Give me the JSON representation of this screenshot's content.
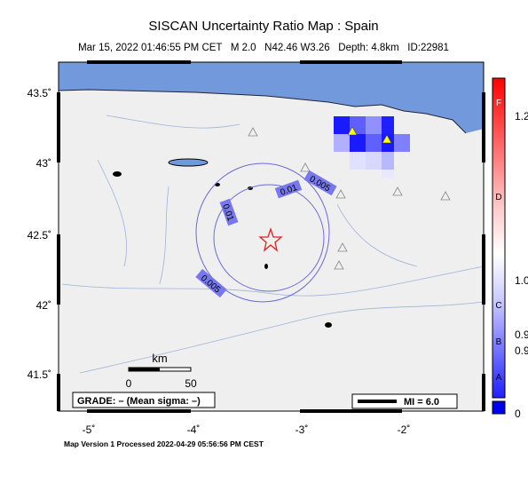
{
  "header": {
    "title": "SISCAN Uncertainty Ratio Map : Spain",
    "subtitle": "Mar 15, 2022 01:46:55 PM CET   M 2.0   N42.46 W3.26   Depth: 4.8km   ID:22981"
  },
  "map": {
    "lat_labels": [
      "43.5˚",
      "43˚",
      "42.5˚",
      "42˚",
      "41.5˚"
    ],
    "lon_labels": [
      "-5˚",
      "-4˚",
      "-3˚",
      "-2˚"
    ],
    "contour_labels": [
      "0.01",
      "0.005",
      "0.01",
      "0.005"
    ],
    "scale": {
      "unit": "km",
      "start": "0",
      "end": "50"
    },
    "grade": "GRADE: – (Mean sigma: –)",
    "mi": "MI = 6.0"
  },
  "colorbar": {
    "grades": [
      "F",
      "D",
      "C",
      "B",
      "A"
    ],
    "values": [
      "1.2",
      "1.0",
      "0.9",
      "0.9",
      "0"
    ]
  },
  "footer": "Map Version 1 Processed 2022-04-29 05:56:56 PM CEST"
}
